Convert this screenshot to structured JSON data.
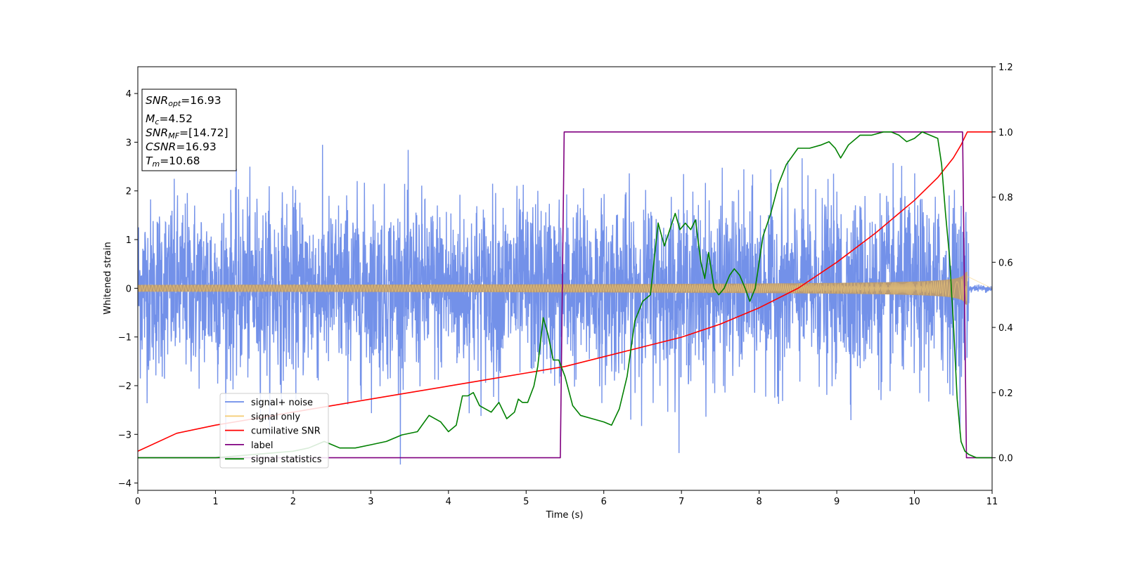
{
  "chart_data": {
    "type": "line",
    "xlabel": "Time (s)",
    "ylabel": "Whitened strain",
    "xlim": [
      0,
      11
    ],
    "ylim_left": [
      -4.15,
      4.55
    ],
    "ylim_right": [
      -0.1,
      1.2
    ],
    "x_ticks": [
      0,
      1,
      2,
      3,
      4,
      5,
      6,
      7,
      8,
      9,
      10,
      11
    ],
    "y_ticks_left": [
      -4,
      -3,
      -2,
      -1,
      0,
      1,
      2,
      3,
      4
    ],
    "y_ticks_left_labels": [
      "−4",
      "−3",
      "−2",
      "−1",
      "0",
      "1",
      "2",
      "3",
      "4"
    ],
    "y_ticks_right": [
      0.0,
      0.2,
      0.4,
      0.6,
      0.8,
      1.0,
      1.2
    ],
    "y_ticks_right_labels": [
      "0.0",
      "0.2",
      "0.4",
      "0.6",
      "0.8",
      "1.0",
      "1.2"
    ],
    "legend": {
      "position": "lower-left",
      "entries": [
        {
          "name": "signal+ noise",
          "color": "#6b8be8"
        },
        {
          "name": "signal only",
          "color": "#f5cf7a"
        },
        {
          "name": "cumilative SNR",
          "color": "#ff0000"
        },
        {
          "name": "label",
          "color": "#800080"
        },
        {
          "name": "signal statistics",
          "color": "#008000"
        }
      ]
    },
    "annotation": {
      "lines": [
        {
          "sym": "SNR",
          "sub": "opt",
          "value": "=16.93"
        },
        {
          "sym": "M",
          "sub": "c",
          "value": "=4.52"
        },
        {
          "sym": "SNR",
          "sub": "MF",
          "value": "=[14.72]"
        },
        {
          "sym": "CSNR",
          "sub": "",
          "value": "=16.93"
        },
        {
          "sym": "T",
          "sub": "m",
          "value": "=10.68"
        }
      ]
    },
    "series": [
      {
        "name": "signal+ noise",
        "axis": "left",
        "color": "#6b8be8",
        "kind": "noise",
        "std": 0.9,
        "t_merge": 10.68
      },
      {
        "name": "signal only",
        "axis": "left",
        "color": "#f5cf7a",
        "kind": "chirp",
        "amplitude_start": 0.07,
        "amplitude_end": 1.2,
        "t_merge": 10.68
      },
      {
        "name": "cumilative SNR",
        "axis": "right",
        "color": "#ff0000",
        "x": [
          0,
          0.5,
          1,
          1.5,
          2,
          2.5,
          3,
          3.5,
          4,
          4.5,
          5,
          5.5,
          6,
          6.5,
          7,
          7.5,
          8,
          8.5,
          9,
          9.5,
          10,
          10.3,
          10.5,
          10.6,
          10.68,
          11
        ],
        "y": [
          0.02,
          0.075,
          0.1,
          0.12,
          0.14,
          0.16,
          0.18,
          0.2,
          0.22,
          0.24,
          0.26,
          0.28,
          0.31,
          0.34,
          0.37,
          0.41,
          0.46,
          0.52,
          0.6,
          0.69,
          0.79,
          0.86,
          0.92,
          0.96,
          1.0,
          1.0
        ]
      },
      {
        "name": "label",
        "axis": "right",
        "color": "#800080",
        "x": [
          0,
          5.44,
          5.49,
          10.62,
          10.67,
          11
        ],
        "y": [
          0,
          0,
          1,
          1,
          0,
          0
        ]
      },
      {
        "name": "signal statistics",
        "axis": "right",
        "color": "#008000",
        "x": [
          0,
          1,
          2,
          2.2,
          2.4,
          2.6,
          2.8,
          3,
          3.2,
          3.4,
          3.6,
          3.75,
          3.9,
          4,
          4.1,
          4.18,
          4.25,
          4.32,
          4.4,
          4.55,
          4.65,
          4.75,
          4.85,
          4.9,
          4.95,
          5.02,
          5.1,
          5.15,
          5.22,
          5.28,
          5.35,
          5.42,
          5.5,
          5.6,
          5.7,
          5.85,
          6,
          6.1,
          6.2,
          6.3,
          6.4,
          6.5,
          6.6,
          6.7,
          6.78,
          6.85,
          6.92,
          6.98,
          7.05,
          7.12,
          7.18,
          7.25,
          7.3,
          7.35,
          7.42,
          7.48,
          7.55,
          7.62,
          7.68,
          7.75,
          7.82,
          7.88,
          7.95,
          8.05,
          8.15,
          8.25,
          8.35,
          8.5,
          8.65,
          8.8,
          8.9,
          8.98,
          9.05,
          9.15,
          9.3,
          9.45,
          9.6,
          9.7,
          9.8,
          9.9,
          10,
          10.1,
          10.2,
          10.3,
          10.35,
          10.4,
          10.45,
          10.5,
          10.55,
          10.6,
          10.65,
          10.7,
          10.8,
          11
        ],
        "y": [
          0,
          0,
          0.02,
          0.03,
          0.05,
          0.03,
          0.03,
          0.04,
          0.05,
          0.07,
          0.08,
          0.13,
          0.11,
          0.08,
          0.1,
          0.19,
          0.19,
          0.2,
          0.16,
          0.14,
          0.17,
          0.12,
          0.14,
          0.18,
          0.17,
          0.17,
          0.22,
          0.28,
          0.43,
          0.38,
          0.3,
          0.3,
          0.25,
          0.16,
          0.13,
          0.12,
          0.11,
          0.1,
          0.15,
          0.25,
          0.42,
          0.48,
          0.5,
          0.72,
          0.65,
          0.7,
          0.75,
          0.7,
          0.72,
          0.7,
          0.73,
          0.6,
          0.55,
          0.63,
          0.52,
          0.5,
          0.52,
          0.56,
          0.58,
          0.56,
          0.52,
          0.48,
          0.52,
          0.68,
          0.75,
          0.84,
          0.9,
          0.95,
          0.95,
          0.96,
          0.97,
          0.95,
          0.92,
          0.96,
          0.99,
          0.99,
          1.0,
          1.0,
          0.99,
          0.97,
          0.98,
          1.0,
          0.99,
          0.98,
          0.9,
          0.75,
          0.62,
          0.42,
          0.18,
          0.05,
          0.02,
          0.01,
          0.0,
          0.0
        ]
      }
    ]
  }
}
